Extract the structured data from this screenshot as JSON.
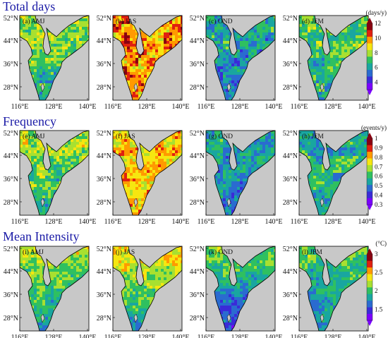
{
  "chart_data": {
    "type": "heatmap",
    "x_ticks": [
      "116°E",
      "128°E",
      "140°E"
    ],
    "y_ticks": [
      "52°N",
      "44°N",
      "36°N",
      "28°N"
    ],
    "xlim": [
      116,
      142
    ],
    "ylim": [
      24,
      52
    ],
    "grid": false,
    "sections": [
      {
        "title": "Total days",
        "colorbar": {
          "unit": "(days/y)",
          "ticks": [
            "12",
            "10",
            "8",
            "6",
            "4"
          ],
          "tick_values": [
            12,
            10,
            8,
            6,
            4
          ],
          "range": [
            3,
            12
          ],
          "colors": [
            "#7a00ff",
            "#3a2bd8",
            "#2a6bd0",
            "#19a6a0",
            "#2fc060",
            "#a8e030",
            "#f6e610",
            "#ff9a00",
            "#e02010",
            "#8a0010"
          ]
        },
        "panels": [
          {
            "label": "(a) AMJ",
            "season": "AMJ",
            "level": 0.42,
            "spread": 0.2,
            "north_bias": 0.15,
            "south_bias": -0.1
          },
          {
            "label": "(b) JAS",
            "season": "JAS",
            "level": 0.7,
            "spread": 0.22,
            "north_bias": 0.05,
            "south_bias": 0.05
          },
          {
            "label": "(c) OND",
            "season": "OND",
            "level": 0.3,
            "spread": 0.18,
            "north_bias": 0.1,
            "south_bias": -0.05
          },
          {
            "label": "(d) JFM",
            "season": "JFM",
            "level": 0.4,
            "spread": 0.2,
            "north_bias": 0.05,
            "south_bias": 0.0
          }
        ]
      },
      {
        "title": "Frequency",
        "colorbar": {
          "unit": "(events/y)",
          "ticks": [
            "1",
            "0.9",
            "0.8",
            "0.7",
            "0.6",
            "0.5",
            "0.4",
            "0.3"
          ],
          "tick_values": [
            1,
            0.9,
            0.8,
            0.7,
            0.6,
            0.5,
            0.4,
            0.3
          ],
          "range": [
            0.3,
            1
          ],
          "colors": [
            "#7a00ff",
            "#3a2bd8",
            "#2a6bd0",
            "#19a6a0",
            "#2fc060",
            "#a8e030",
            "#f6e610",
            "#ff9a00",
            "#e02010",
            "#8a0010"
          ]
        },
        "panels": [
          {
            "label": "(e) AMJ",
            "season": "AMJ",
            "level": 0.5,
            "spread": 0.2,
            "north_bias": 0.1,
            "south_bias": -0.15
          },
          {
            "label": "(f) JAS",
            "season": "JAS",
            "level": 0.66,
            "spread": 0.2,
            "north_bias": 0.0,
            "south_bias": 0.05
          },
          {
            "label": "(g) OND",
            "season": "OND",
            "level": 0.32,
            "spread": 0.16,
            "north_bias": 0.05,
            "south_bias": -0.05
          },
          {
            "label": "(h) JFM",
            "season": "JFM",
            "level": 0.36,
            "spread": 0.18,
            "north_bias": 0.0,
            "south_bias": 0.08
          }
        ]
      },
      {
        "title": "Mean Intensity",
        "colorbar": {
          "unit": "(°C)",
          "ticks": [
            "3",
            "2.5",
            "2",
            "1.5"
          ],
          "tick_values": [
            3,
            2.5,
            2,
            1.5
          ],
          "range": [
            1.2,
            3
          ],
          "colors": [
            "#7a00ff",
            "#3a2bd8",
            "#2a6bd0",
            "#19a6a0",
            "#2fc060",
            "#a8e030",
            "#f6e610",
            "#ff9a00",
            "#e02010",
            "#8a0010"
          ]
        },
        "panels": [
          {
            "label": "(i) AMJ",
            "season": "AMJ",
            "level": 0.55,
            "spread": 0.15,
            "north_bias": 0.05,
            "south_bias": -0.25
          },
          {
            "label": "(j) JAS",
            "season": "JAS",
            "level": 0.55,
            "spread": 0.15,
            "north_bias": 0.15,
            "south_bias": -0.25
          },
          {
            "label": "(k) OND",
            "season": "OND",
            "level": 0.35,
            "spread": 0.15,
            "north_bias": 0.15,
            "south_bias": -0.2
          },
          {
            "label": "(l) JFM",
            "season": "JFM",
            "level": 0.38,
            "spread": 0.15,
            "north_bias": 0.1,
            "south_bias": -0.1
          }
        ]
      }
    ],
    "land_color": "#c8c8c8",
    "coast_color": "#000000"
  }
}
